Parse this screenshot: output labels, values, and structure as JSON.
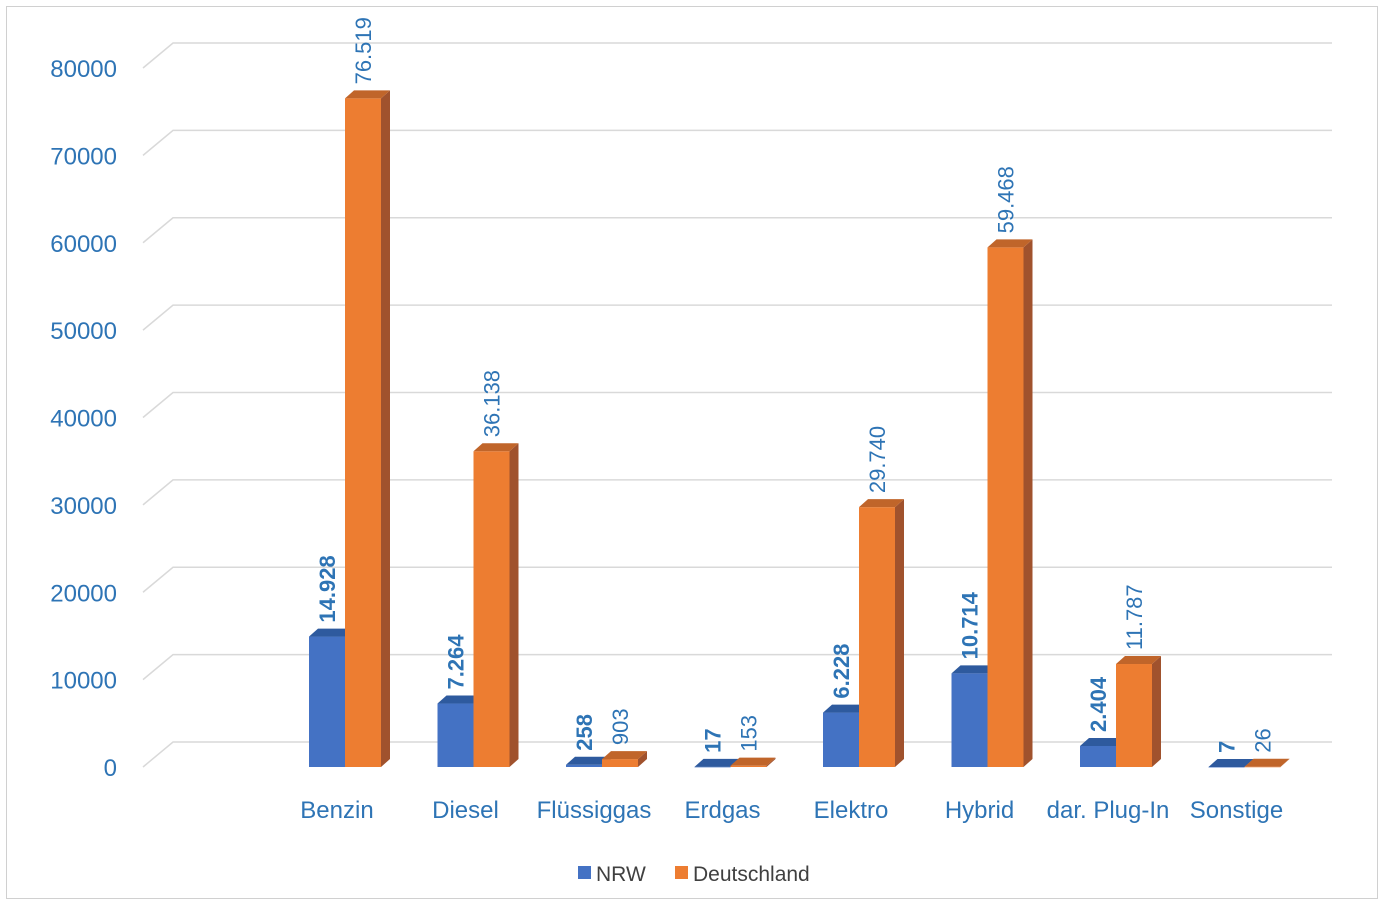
{
  "chart_data": {
    "type": "bar",
    "categories": [
      "Benzin",
      "Diesel",
      "Flüssiggas",
      "Erdgas",
      "Elektro",
      "Hybrid",
      "dar. Plug-In",
      "Sonstige"
    ],
    "series": [
      {
        "name": "NRW",
        "values": [
          14928,
          7264,
          258,
          17,
          6228,
          10714,
          2404,
          7
        ],
        "labels": [
          "14.928",
          "7.264",
          "258",
          "17",
          "6.228",
          "10.714",
          "2.404",
          "7"
        ],
        "color": "#4472c4",
        "side_color": "#2f5597",
        "top_color": "#2e5a9e",
        "label_color": "#2e74b5",
        "label_bold": true
      },
      {
        "name": "Deutschland",
        "values": [
          76519,
          36138,
          903,
          153,
          29740,
          59468,
          11787,
          26
        ],
        "labels": [
          "76.519",
          "36.138",
          "903",
          "153",
          "29.740",
          "59.468",
          "11.787",
          "26"
        ],
        "color": "#ed7d31",
        "side_color": "#a0522d",
        "top_color": "#c0652a",
        "label_color": "#2e74b5",
        "label_bold": false
      }
    ],
    "yticks": [
      "0",
      "10000",
      "20000",
      "30000",
      "40000",
      "50000",
      "60000",
      "70000",
      "80000"
    ],
    "ylim": [
      0,
      80000
    ],
    "grid": true,
    "legend": "bottom-center",
    "gridline_color": "#d9d9d9"
  }
}
